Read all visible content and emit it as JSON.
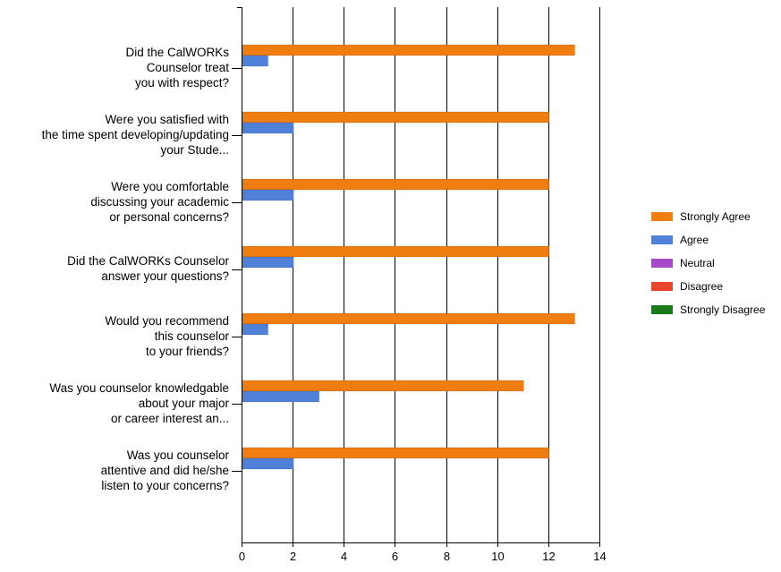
{
  "chart_data": {
    "type": "bar",
    "orientation": "horizontal",
    "categories": [
      [
        "Did the CalWORKs",
        "Counselor treat",
        "you with respect?"
      ],
      [
        "Were you satisfied with",
        "the time spent developing/updating",
        "your Stude..."
      ],
      [
        "Were you comfortable",
        "discussing your academic",
        "or personal concerns?"
      ],
      [
        "Did the CalWORKs Counselor",
        "answer your questions?"
      ],
      [
        "Would you recommend",
        "this counselor",
        "to your friends?"
      ],
      [
        "Was you counselor knowledgable",
        "about your major",
        "or career interest an..."
      ],
      [
        "Was you counselor",
        "attentive and did he/she",
        "listen to your concerns?"
      ]
    ],
    "series": [
      {
        "name": "Strongly Agree",
        "color": "#f07d10",
        "values": [
          13,
          12,
          12,
          12,
          13,
          11,
          12
        ]
      },
      {
        "name": "Agree",
        "color": "#4f81d9",
        "values": [
          1,
          2,
          2,
          2,
          1,
          3,
          2
        ]
      },
      {
        "name": "Neutral",
        "color": "#a64ac9",
        "values": [
          0,
          0,
          0,
          0,
          0,
          0,
          0
        ]
      },
      {
        "name": "Disagree",
        "color": "#e8452c",
        "values": [
          0,
          0,
          0,
          0,
          0,
          0,
          0
        ]
      },
      {
        "name": "Strongly Disagree",
        "color": "#1a7a1a",
        "values": [
          0,
          0,
          0,
          0,
          0,
          0,
          0
        ]
      }
    ],
    "xticks": [
      0,
      2,
      4,
      6,
      8,
      10,
      12,
      14
    ],
    "xlim": [
      0,
      14
    ],
    "grid": true,
    "legend_position": "right",
    "title": "",
    "xlabel": "",
    "ylabel": ""
  }
}
